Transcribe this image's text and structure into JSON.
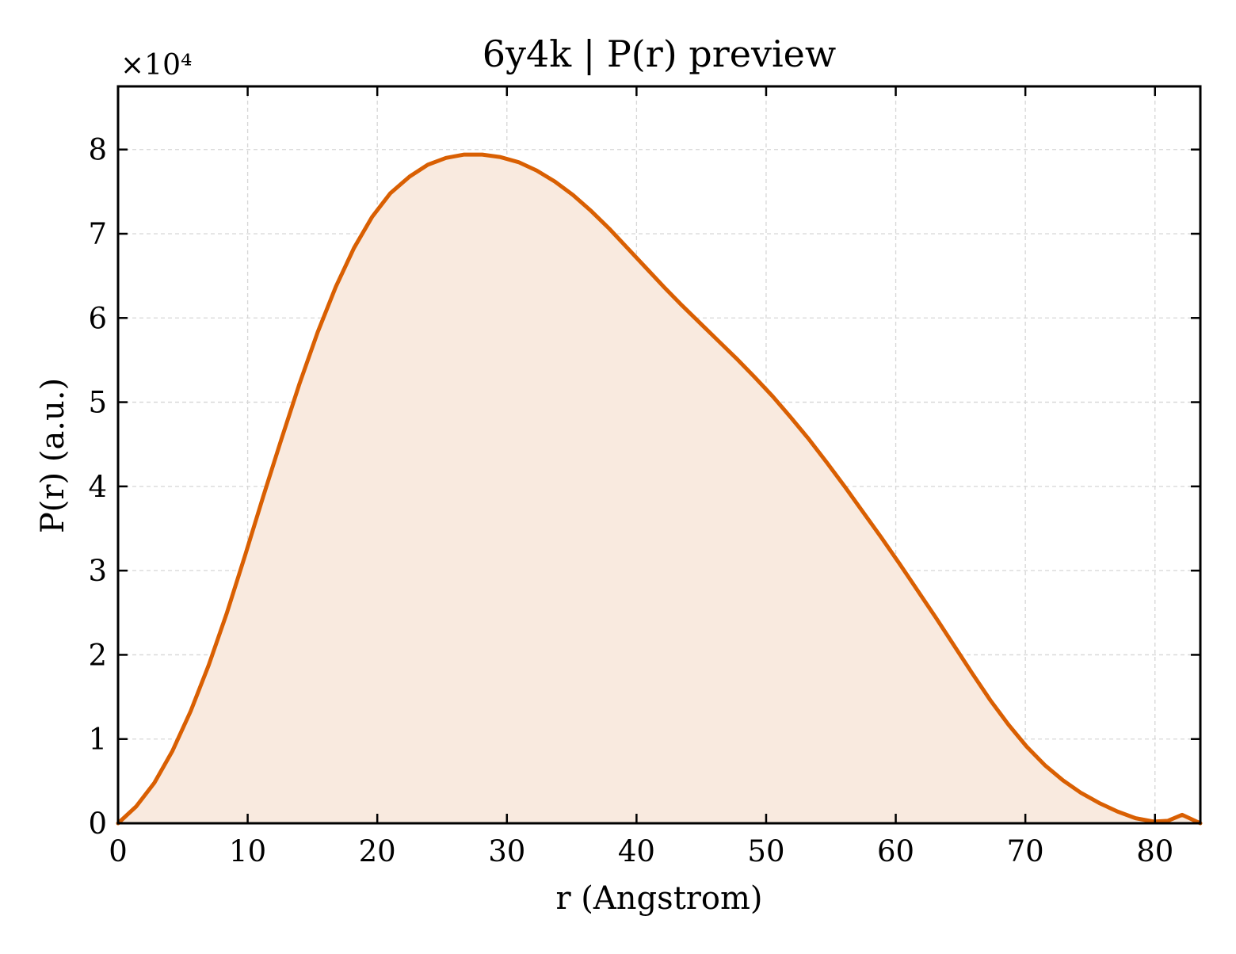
{
  "chart_data": {
    "type": "area",
    "title": "6y4k | P(r) preview",
    "xlabel": "r (Angstrom)",
    "ylabel": "P(r) (a.u.)",
    "y_multiplier": "×10⁴",
    "xlim": [
      0,
      83.5
    ],
    "ylim": [
      0,
      8.75
    ],
    "xticks": [
      0,
      10,
      20,
      30,
      40,
      50,
      60,
      70,
      80
    ],
    "yticks": [
      0,
      1,
      2,
      3,
      4,
      5,
      6,
      7,
      8
    ],
    "grid": true,
    "colors": {
      "line": "#d95f02",
      "fill": "#f9eadf",
      "grid": "#d6d6d6",
      "axes": "#000000"
    },
    "series": [
      {
        "x": [
          0,
          1.4,
          2.8,
          4.2,
          5.6,
          7.0,
          8.4,
          9.8,
          11.2,
          12.6,
          14.0,
          15.4,
          16.8,
          18.2,
          19.6,
          21.0,
          22.5,
          23.9,
          25.3,
          26.7,
          28.1,
          29.5,
          30.9,
          32.3,
          33.7,
          35.1,
          36.5,
          37.9,
          39.3,
          40.7,
          42.1,
          43.5,
          44.9,
          46.3,
          47.7,
          49.1,
          50.5,
          51.9,
          53.3,
          54.7,
          56.1,
          57.5,
          58.9,
          60.3,
          61.7,
          63.1,
          64.5,
          65.9,
          67.3,
          68.7,
          70.1,
          71.5,
          72.9,
          74.3,
          75.7,
          77.1,
          78.5,
          79.9,
          81.0,
          82.1,
          83.5
        ],
        "values": [
          0.0,
          0.2,
          0.48,
          0.86,
          1.33,
          1.88,
          2.5,
          3.18,
          3.88,
          4.56,
          5.22,
          5.83,
          6.37,
          6.83,
          7.2,
          7.48,
          7.68,
          7.82,
          7.9,
          7.94,
          7.94,
          7.91,
          7.85,
          7.75,
          7.62,
          7.46,
          7.27,
          7.06,
          6.83,
          6.6,
          6.37,
          6.15,
          5.94,
          5.73,
          5.52,
          5.3,
          5.07,
          4.82,
          4.56,
          4.28,
          3.99,
          3.69,
          3.39,
          3.08,
          2.76,
          2.44,
          2.11,
          1.78,
          1.46,
          1.17,
          0.91,
          0.69,
          0.51,
          0.36,
          0.24,
          0.14,
          0.06,
          0.02,
          0.03,
          0.1,
          0.0
        ]
      }
    ]
  }
}
